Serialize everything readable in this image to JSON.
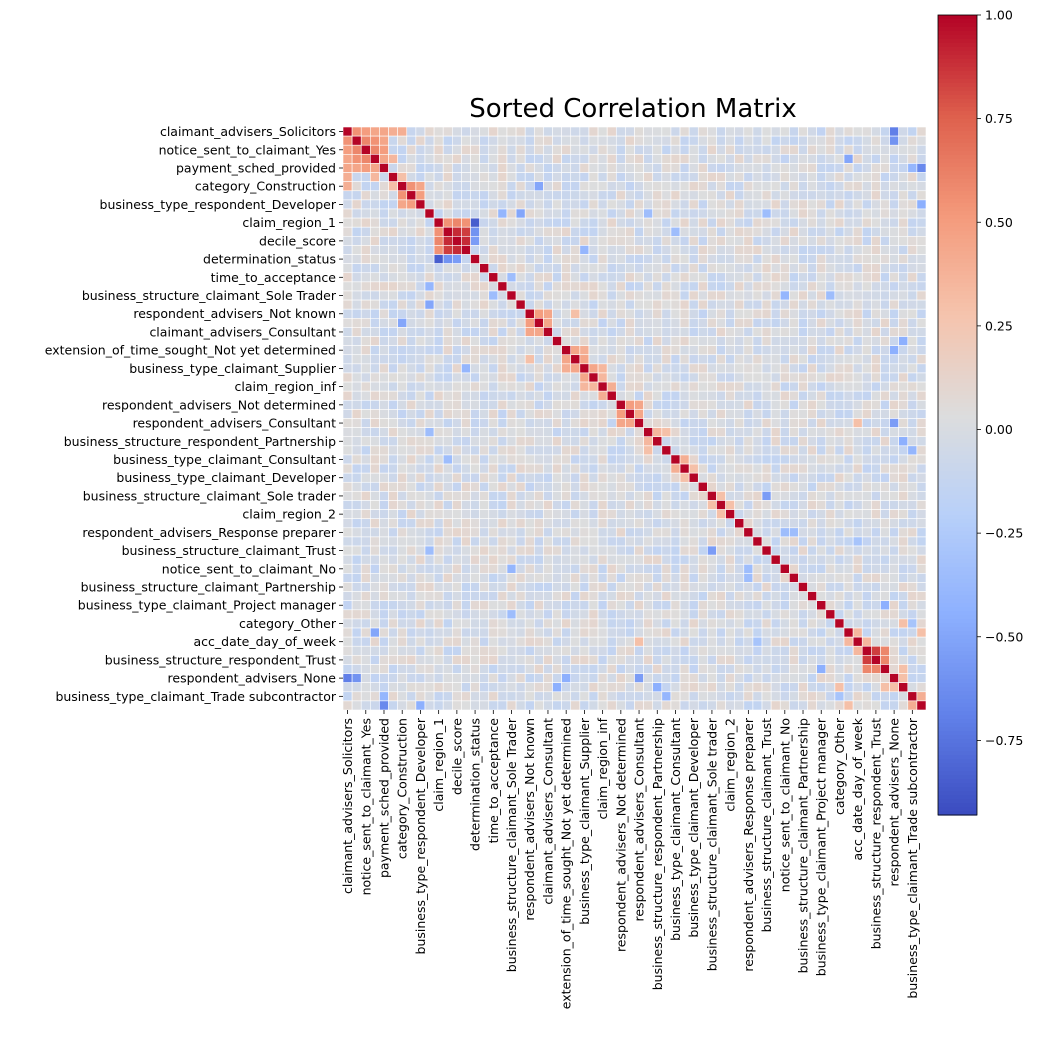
{
  "chart_data": {
    "type": "heatmap",
    "title": "Sorted Correlation Matrix",
    "colormap": "coolwarm",
    "grid": true,
    "grid_color": "#ffffff",
    "colorbar_position": "right",
    "vmin": -0.93,
    "vmax": 1.0,
    "colorbar_ticks": [
      1.0,
      0.75,
      0.5,
      0.25,
      0.0,
      -0.25,
      -0.5,
      -0.75
    ],
    "colorbar_tick_labels": [
      "1.00",
      "0.75",
      "0.50",
      "0.25",
      "0.00",
      "−0.25",
      "−0.50",
      "−0.75"
    ],
    "y_tick_labels": [
      "claimant_advisers_Solicitors",
      "notice_sent_to_claimant_Yes",
      "payment_sched_provided",
      "category_Construction",
      "business_type_respondent_Developer",
      "claim_region_1",
      "decile_score",
      "determination_status",
      "time_to_acceptance",
      "business_structure_claimant_Sole Trader",
      "respondent_advisers_Not known",
      "claimant_advisers_Consultant",
      "extension_of_time_sought_Not yet determined",
      "business_type_claimant_Supplier",
      "claim_region_inf",
      "respondent_advisers_Not determined",
      "respondent_advisers_Consultant",
      "business_structure_respondent_Partnership",
      "business_type_claimant_Consultant",
      "business_type_claimant_Developer",
      "business_structure_claimant_Sole trader",
      "claim_region_2",
      "respondent_advisers_Response preparer",
      "business_structure_claimant_Trust",
      "notice_sent_to_claimant_No",
      "business_structure_claimant_Partnership",
      "business_type_claimant_Project manager",
      "category_Other",
      "acc_date_day_of_week",
      "business_structure_respondent_Trust",
      "respondent_advisers_None",
      "business_type_claimant_Trade subcontractor"
    ],
    "x_tick_labels": [
      "claimant_advisers_Solicitors",
      "notice_sent_to_claimant_Yes",
      "payment_sched_provided",
      "category_Construction",
      "business_type_respondent_Developer",
      "claim_region_1",
      "decile_score",
      "determination_status",
      "time_to_acceptance",
      "business_structure_claimant_Sole Trader",
      "respondent_advisers_Not known",
      "claimant_advisers_Consultant",
      "extension_of_time_sought_Not yet determined",
      "business_type_claimant_Supplier",
      "claim_region_inf",
      "respondent_advisers_Not determined",
      "respondent_advisers_Consultant",
      "business_structure_respondent_Partnership",
      "business_type_claimant_Consultant",
      "business_type_claimant_Developer",
      "business_structure_claimant_Sole trader",
      "claim_region_2",
      "respondent_advisers_Response preparer",
      "business_structure_claimant_Trust",
      "notice_sent_to_claimant_No",
      "business_structure_claimant_Partnership",
      "business_type_claimant_Project manager",
      "category_Other",
      "acc_date_day_of_week",
      "business_structure_respondent_Trust",
      "respondent_advisers_None",
      "business_type_claimant_Trade subcontractor"
    ],
    "matrix_size": 64,
    "labeled_every": 2,
    "notable_cells": [
      {
        "row": 0,
        "col": 1,
        "value": 0.55
      },
      {
        "row": 0,
        "col": 2,
        "value": 0.5
      },
      {
        "row": 0,
        "col": 3,
        "value": 0.45
      },
      {
        "row": 0,
        "col": 4,
        "value": 0.45
      },
      {
        "row": 0,
        "col": 5,
        "value": 0.4
      },
      {
        "row": 0,
        "col": 6,
        "value": 0.4
      },
      {
        "row": 1,
        "col": 2,
        "value": 0.6
      },
      {
        "row": 1,
        "col": 3,
        "value": 0.55
      },
      {
        "row": 1,
        "col": 4,
        "value": 0.45
      },
      {
        "row": 2,
        "col": 3,
        "value": 0.6
      },
      {
        "row": 2,
        "col": 4,
        "value": 0.5
      },
      {
        "row": 3,
        "col": 4,
        "value": 0.45
      },
      {
        "row": 3,
        "col": 5,
        "value": 0.35
      },
      {
        "row": 5,
        "col": 6,
        "value": 0.3
      },
      {
        "row": 6,
        "col": 7,
        "value": 0.55
      },
      {
        "row": 6,
        "col": 8,
        "value": 0.45
      },
      {
        "row": 7,
        "col": 8,
        "value": 0.5
      },
      {
        "row": 10,
        "col": 11,
        "value": 0.55
      },
      {
        "row": 10,
        "col": 12,
        "value": 0.6
      },
      {
        "row": 10,
        "col": 13,
        "value": 0.55
      },
      {
        "row": 11,
        "col": 12,
        "value": 0.9
      },
      {
        "row": 11,
        "col": 13,
        "value": 0.85
      },
      {
        "row": 12,
        "col": 13,
        "value": 0.9
      },
      {
        "row": 10,
        "col": 14,
        "value": -0.85
      },
      {
        "row": 11,
        "col": 14,
        "value": -0.6
      },
      {
        "row": 12,
        "col": 14,
        "value": -0.55
      },
      {
        "row": 20,
        "col": 21,
        "value": 0.5
      },
      {
        "row": 20,
        "col": 22,
        "value": 0.45
      },
      {
        "row": 21,
        "col": 22,
        "value": 0.45
      },
      {
        "row": 20,
        "col": 25,
        "value": 0.3
      },
      {
        "row": 24,
        "col": 25,
        "value": 0.45
      },
      {
        "row": 24,
        "col": 26,
        "value": 0.4
      },
      {
        "row": 25,
        "col": 26,
        "value": 0.45
      },
      {
        "row": 26,
        "col": 27,
        "value": 0.45
      },
      {
        "row": 26,
        "col": 28,
        "value": 0.35
      },
      {
        "row": 27,
        "col": 28,
        "value": 0.35
      },
      {
        "row": 28,
        "col": 29,
        "value": 0.4
      },
      {
        "row": 30,
        "col": 31,
        "value": 0.5
      },
      {
        "row": 30,
        "col": 32,
        "value": 0.45
      },
      {
        "row": 31,
        "col": 32,
        "value": 0.45
      },
      {
        "row": 33,
        "col": 34,
        "value": 0.35
      },
      {
        "row": 33,
        "col": 35,
        "value": 0.3
      },
      {
        "row": 36,
        "col": 37,
        "value": 0.4
      },
      {
        "row": 37,
        "col": 38,
        "value": 0.3
      },
      {
        "row": 40,
        "col": 41,
        "value": 0.3
      },
      {
        "row": 41,
        "col": 42,
        "value": 0.3
      },
      {
        "row": 55,
        "col": 56,
        "value": 0.35
      },
      {
        "row": 56,
        "col": 57,
        "value": 0.35
      },
      {
        "row": 57,
        "col": 58,
        "value": 0.85
      },
      {
        "row": 57,
        "col": 59,
        "value": 0.6
      },
      {
        "row": 58,
        "col": 59,
        "value": 0.6
      },
      {
        "row": 60,
        "col": 61,
        "value": 0.3
      },
      {
        "row": 62,
        "col": 63,
        "value": 0.4
      },
      {
        "row": 0,
        "col": 60,
        "value": -0.7
      },
      {
        "row": 1,
        "col": 60,
        "value": -0.6
      },
      {
        "row": 3,
        "col": 55,
        "value": -0.5
      },
      {
        "row": 4,
        "col": 63,
        "value": -0.65
      },
      {
        "row": 4,
        "col": 62,
        "value": -0.4
      },
      {
        "row": 9,
        "col": 19,
        "value": -0.5
      },
      {
        "row": 9,
        "col": 46,
        "value": -0.35
      },
      {
        "row": 13,
        "col": 26,
        "value": -0.4
      },
      {
        "row": 16,
        "col": 18,
        "value": -0.35
      },
      {
        "row": 17,
        "col": 9,
        "value": -0.4
      },
      {
        "row": 18,
        "col": 48,
        "value": -0.4
      },
      {
        "row": 21,
        "col": 6,
        "value": -0.5
      },
      {
        "row": 23,
        "col": 61,
        "value": -0.45
      },
      {
        "row": 24,
        "col": 60,
        "value": -0.45
      },
      {
        "row": 32,
        "col": 60,
        "value": -0.55
      },
      {
        "row": 33,
        "col": 9,
        "value": -0.35
      },
      {
        "row": 34,
        "col": 61,
        "value": -0.45
      },
      {
        "row": 35,
        "col": 62,
        "value": -0.4
      },
      {
        "row": 36,
        "col": 11,
        "value": -0.35
      },
      {
        "row": 44,
        "col": 49,
        "value": -0.35
      },
      {
        "row": 46,
        "col": 40,
        "value": -0.55
      },
      {
        "row": 48,
        "col": 44,
        "value": -0.35
      },
      {
        "row": 53,
        "col": 18,
        "value": -0.35
      },
      {
        "row": 56,
        "col": 45,
        "value": -0.3
      },
      {
        "row": 56,
        "col": 32,
        "value": 0.3
      },
      {
        "row": 59,
        "col": 52,
        "value": -0.45
      },
      {
        "row": 59,
        "col": 61,
        "value": -0.4
      },
      {
        "row": 61,
        "col": 54,
        "value": 0.3
      },
      {
        "row": 61,
        "col": 59,
        "value": 0.3
      },
      {
        "row": 62,
        "col": 54,
        "value": -0.3
      },
      {
        "row": 63,
        "col": 8,
        "value": -0.45
      },
      {
        "row": 63,
        "col": 55,
        "value": 0.3
      }
    ]
  }
}
